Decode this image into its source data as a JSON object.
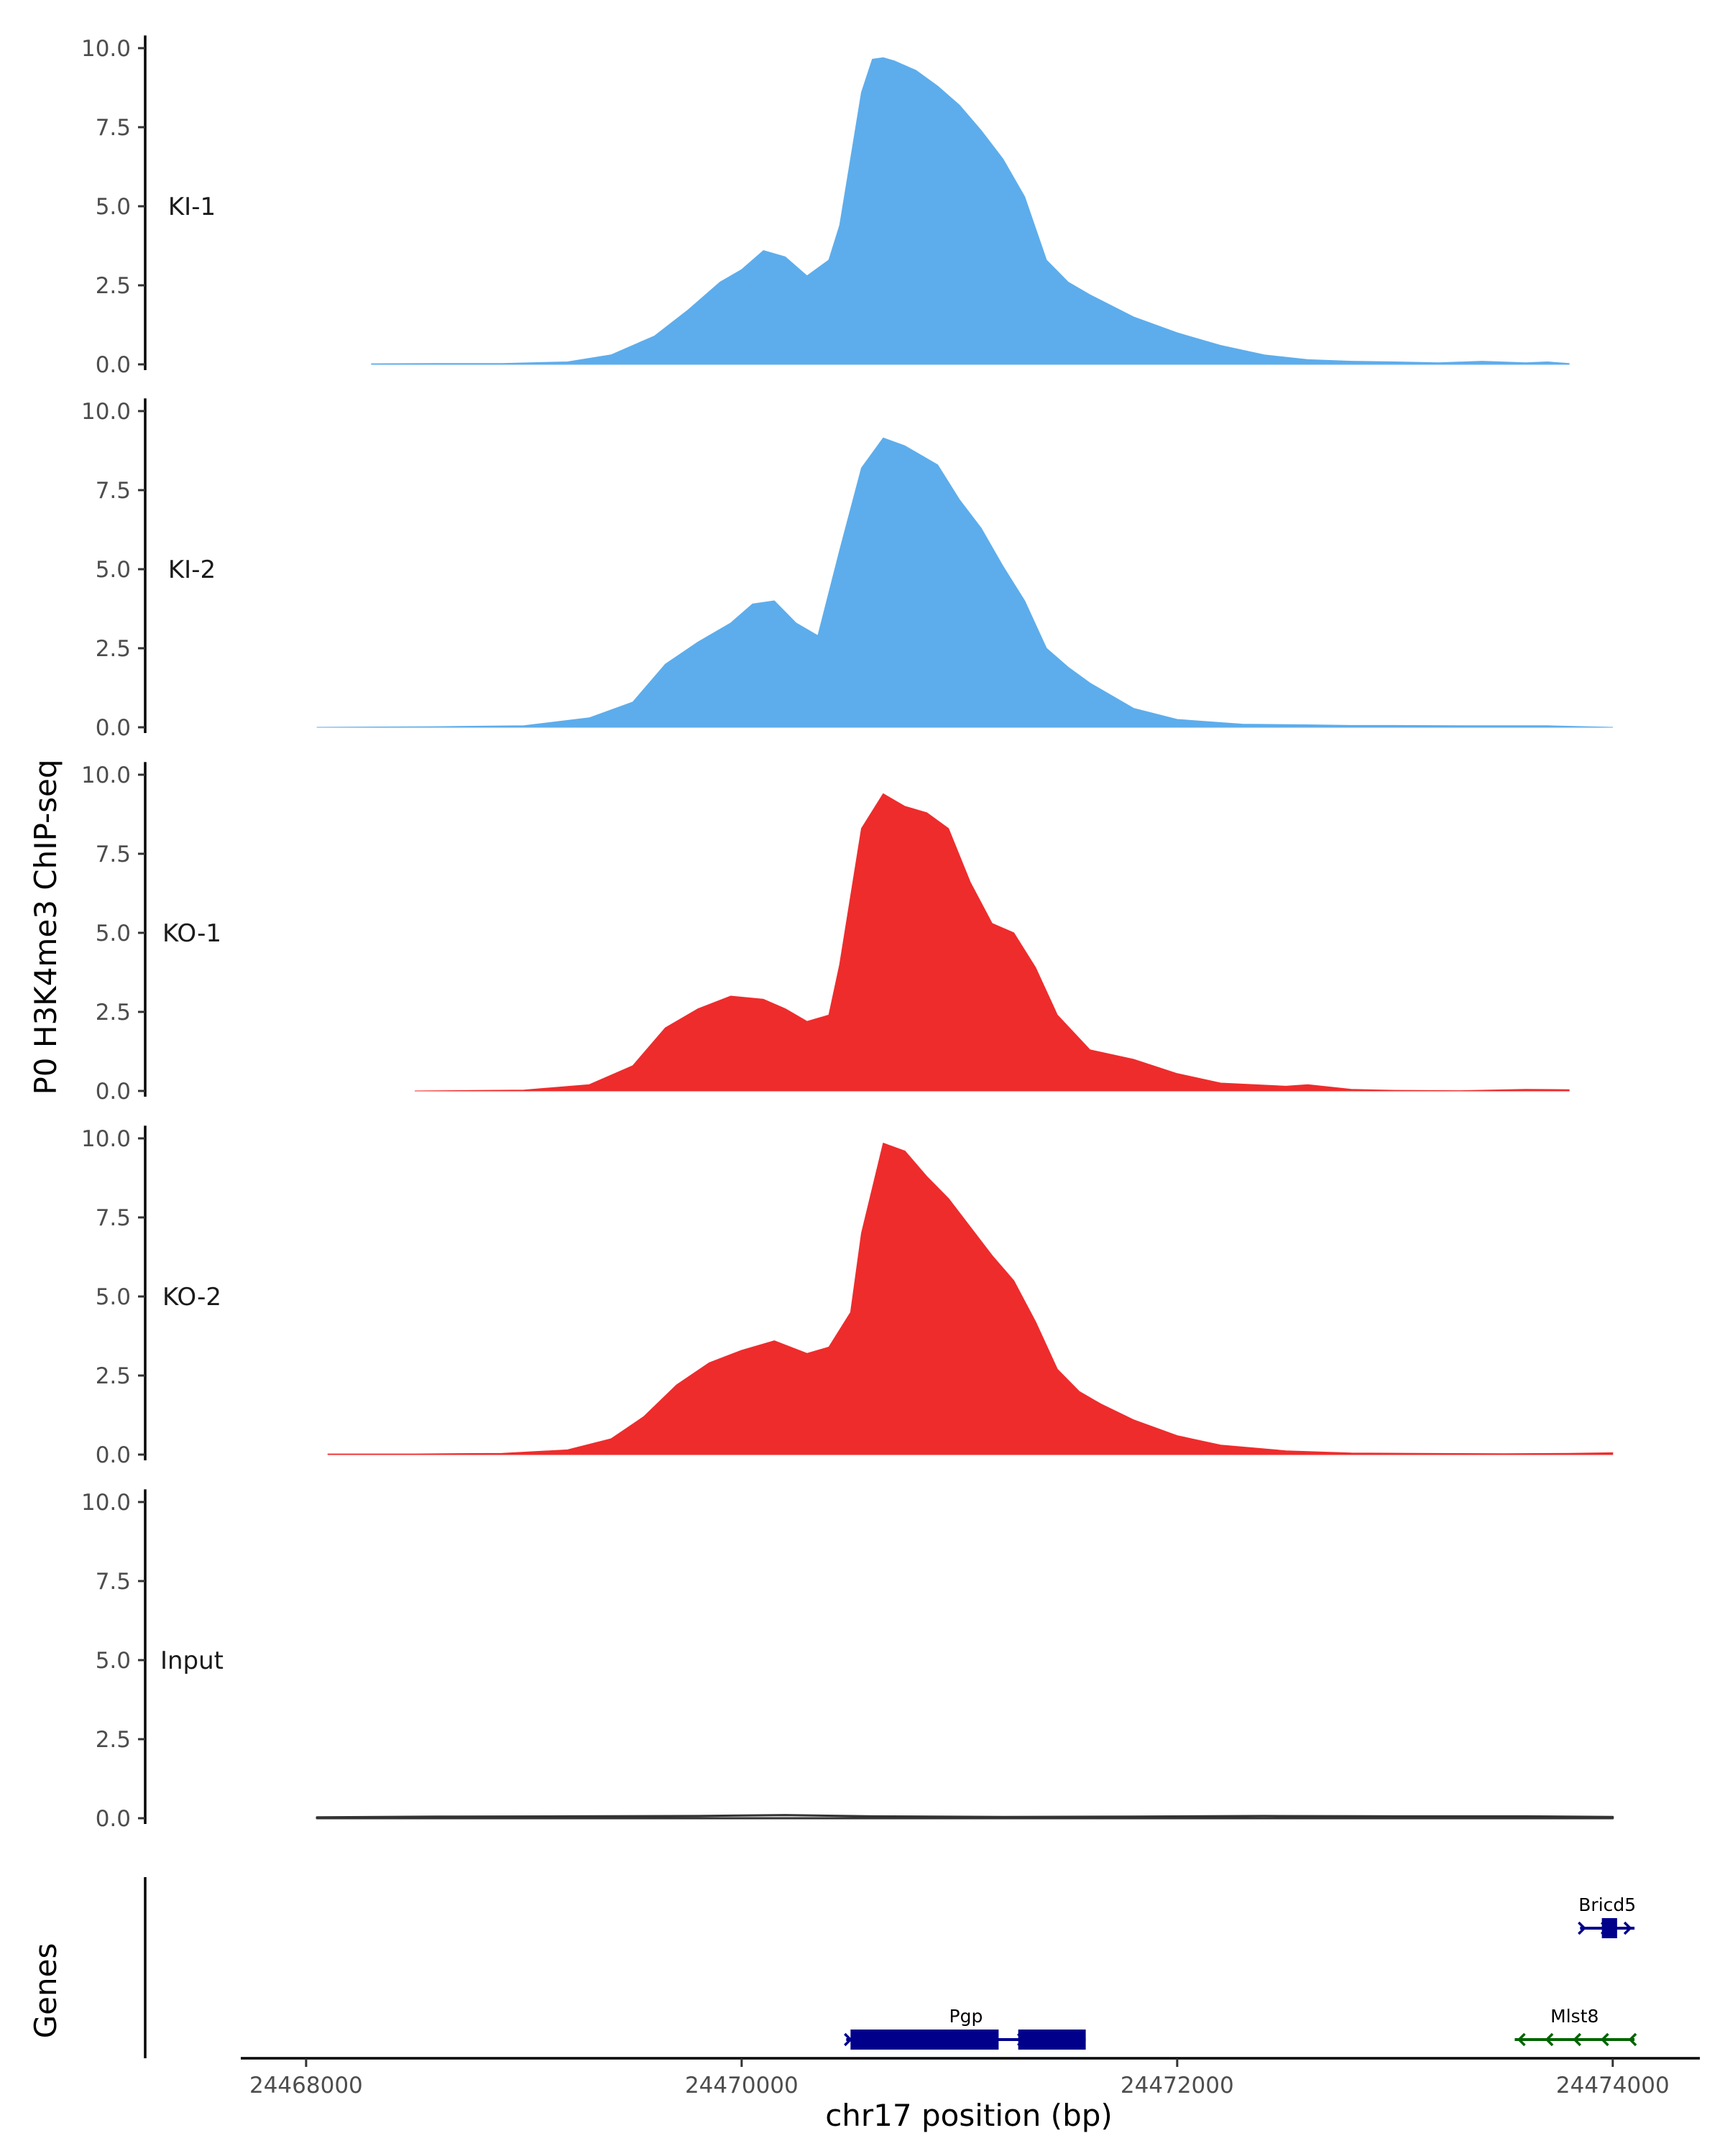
{
  "chart_data": {
    "type": "area",
    "title": "",
    "ylabel": "P0 H3K4me3 ChIP-seq",
    "xlabel": "chr17 position (bp)",
    "xlim": [
      24467700,
      24474400
    ],
    "ylim": [
      0,
      10.4
    ],
    "y_ticks": [
      0,
      2.5,
      5,
      7.5,
      10
    ],
    "y_tick_labels": [
      "0.0",
      "2.5",
      "5.0",
      "7.5",
      "10.0"
    ],
    "x_ticks": [
      24468000,
      24470000,
      24472000,
      24474000
    ],
    "x_tick_labels": [
      "24468000",
      "24470000",
      "24472000",
      "24474000"
    ],
    "colors": {
      "KI": "#5DADEC",
      "KO": "#EE2C2C",
      "Input": "#333333",
      "gene_plus": "#00008B",
      "gene_minus": "#006400"
    },
    "tracks": [
      {
        "name": "KI-1",
        "label": "KI-1",
        "color": "#5DADEC",
        "x": [
          24468300,
          24468600,
          24468900,
          24469200,
          24469400,
          24469600,
          24469750,
          24469900,
          24470000,
          24470100,
          24470200,
          24470300,
          24470400,
          24470450,
          24470500,
          24470550,
          24470600,
          24470650,
          24470700,
          24470800,
          24470900,
          24471000,
          24471100,
          24471200,
          24471300,
          24471400,
          24471500,
          24471600,
          24471800,
          24472000,
          24472200,
          24472400,
          24472600,
          24472800,
          24473000,
          24473200,
          24473400,
          24473600,
          24473700,
          24473800
        ],
        "values": [
          0.02,
          0.03,
          0.03,
          0.08,
          0.3,
          0.9,
          1.7,
          2.6,
          3.0,
          3.6,
          3.4,
          2.8,
          3.3,
          4.4,
          6.5,
          8.6,
          9.65,
          9.7,
          9.6,
          9.3,
          8.8,
          8.2,
          7.4,
          6.5,
          5.3,
          3.3,
          2.6,
          2.2,
          1.5,
          1.0,
          0.6,
          0.3,
          0.15,
          0.1,
          0.08,
          0.05,
          0.1,
          0.05,
          0.08,
          0.03
        ]
      },
      {
        "name": "KI-2",
        "label": "KI-2",
        "color": "#5DADEC",
        "x": [
          24468050,
          24468600,
          24469000,
          24469300,
          24469500,
          24469650,
          24469800,
          24469950,
          24470050,
          24470150,
          24470250,
          24470350,
          24470450,
          24470550,
          24470650,
          24470750,
          24470900,
          24471000,
          24471100,
          24471200,
          24471300,
          24471400,
          24471500,
          24471600,
          24471800,
          24472000,
          24472300,
          24472600,
          24472800,
          24473000,
          24473300,
          24473700,
          24474000
        ],
        "values": [
          0.0,
          0.02,
          0.05,
          0.3,
          0.8,
          2.0,
          2.7,
          3.3,
          3.9,
          4.0,
          3.3,
          2.9,
          5.6,
          8.2,
          9.15,
          8.9,
          8.3,
          7.2,
          6.3,
          5.1,
          4.0,
          2.5,
          1.9,
          1.4,
          0.6,
          0.25,
          0.1,
          0.08,
          0.06,
          0.06,
          0.05,
          0.05,
          0.0
        ]
      },
      {
        "name": "KO-1",
        "label": "KO-1",
        "color": "#EE2C2C",
        "x": [
          24468500,
          24469000,
          24469300,
          24469500,
          24469650,
          24469800,
          24469950,
          24470100,
          24470200,
          24470300,
          24470400,
          24470450,
          24470550,
          24470650,
          24470750,
          24470850,
          24470950,
          24471050,
          24471150,
          24471250,
          24471350,
          24471450,
          24471600,
          24471800,
          24472000,
          24472200,
          24472500,
          24472600,
          24472800,
          24473000,
          24473300,
          24473600,
          24473800
        ],
        "values": [
          0.0,
          0.03,
          0.2,
          0.8,
          2.0,
          2.6,
          3.0,
          2.9,
          2.6,
          2.2,
          2.4,
          4.0,
          8.3,
          9.4,
          9.0,
          8.8,
          8.3,
          6.6,
          5.3,
          5.0,
          3.9,
          2.4,
          1.3,
          1.0,
          0.55,
          0.25,
          0.15,
          0.2,
          0.05,
          0.02,
          0.01,
          0.05,
          0.04
        ]
      },
      {
        "name": "KO-2",
        "label": "KO-2",
        "color": "#EE2C2C",
        "x": [
          24468100,
          24468500,
          24468900,
          24469200,
          24469400,
          24469550,
          24469700,
          24469850,
          24470000,
          24470150,
          24470300,
          24470400,
          24470500,
          24470550,
          24470650,
          24470750,
          24470850,
          24470950,
          24471050,
          24471150,
          24471250,
          24471350,
          24471450,
          24471550,
          24471650,
          24471800,
          24472000,
          24472200,
          24472500,
          24472800,
          24473100,
          24473500,
          24473800,
          24474000
        ],
        "values": [
          0.02,
          0.02,
          0.04,
          0.15,
          0.5,
          1.2,
          2.2,
          2.9,
          3.3,
          3.6,
          3.2,
          3.4,
          4.5,
          7.0,
          9.85,
          9.6,
          8.8,
          8.1,
          7.2,
          6.3,
          5.5,
          4.2,
          2.7,
          2.0,
          1.6,
          1.1,
          0.6,
          0.3,
          0.12,
          0.05,
          0.04,
          0.03,
          0.04,
          0.06
        ]
      },
      {
        "name": "Input",
        "label": "Input",
        "color": "#333333",
        "x": [
          24468050,
          24468600,
          24469200,
          24469800,
          24470200,
          24470600,
          24471200,
          24471800,
          24472400,
          24473000,
          24473600,
          24474000
        ],
        "values": [
          0.03,
          0.05,
          0.06,
          0.07,
          0.1,
          0.06,
          0.04,
          0.05,
          0.07,
          0.06,
          0.06,
          0.04
        ]
      }
    ],
    "gene_panel": {
      "ylabel": "Genes",
      "genes": [
        {
          "name": "Bricd5",
          "start": 24473850,
          "end": 24474100,
          "strand": "+",
          "row": 1,
          "color": "#00008B",
          "exons": [
            [
              24473950,
              24474020
            ]
          ]
        },
        {
          "name": "Pgp",
          "start": 24470480,
          "end": 24471580,
          "strand": "+",
          "row": 0,
          "color": "#00008B",
          "exons": [
            [
              24470500,
              24471180
            ],
            [
              24471270,
              24471580
            ]
          ]
        },
        {
          "name": "Mlst8",
          "start": 24473550,
          "end": 24474100,
          "strand": "-",
          "row": 0,
          "color": "#006400",
          "exons": []
        }
      ]
    }
  }
}
